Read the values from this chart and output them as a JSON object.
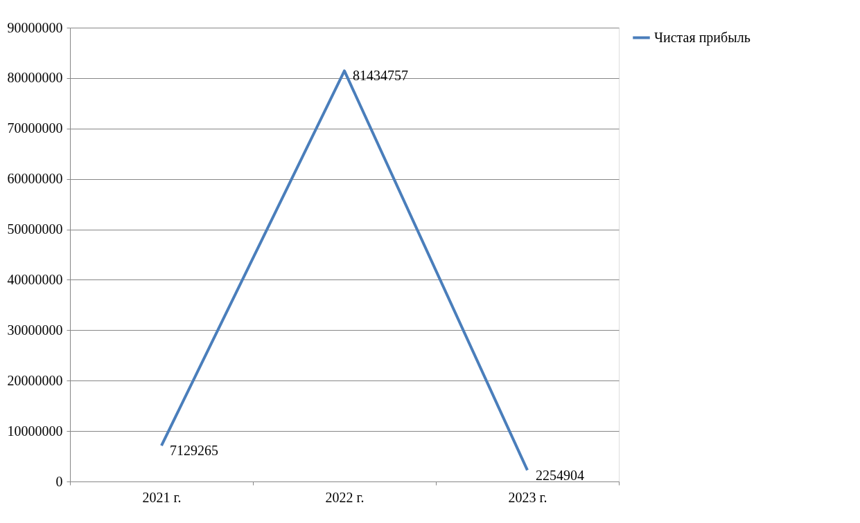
{
  "chart_data": {
    "type": "line",
    "categories": [
      "2021 г.",
      "2022 г.",
      "2023 г."
    ],
    "series": [
      {
        "name": "Чистая прибыль",
        "color": "#4a7ebb",
        "values": [
          7129265,
          81434757,
          2254904
        ]
      }
    ],
    "ylim": [
      0,
      90000000
    ],
    "yticks": [
      0,
      10000000,
      20000000,
      30000000,
      40000000,
      50000000,
      60000000,
      70000000,
      80000000,
      90000000
    ],
    "grid": "y",
    "legend": "right",
    "data_labels": true,
    "marker": "none",
    "line_style": "solid"
  }
}
